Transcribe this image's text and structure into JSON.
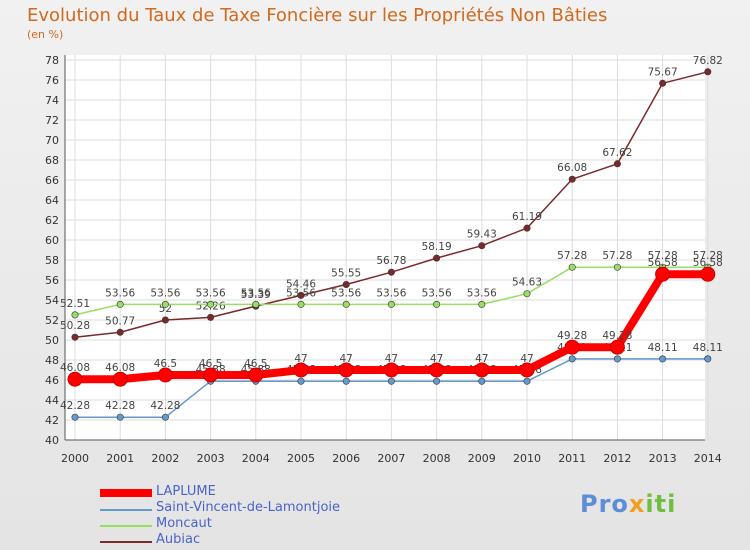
{
  "title": "Evolution du Taux de Taxe Foncière sur les Propriétés Non Bâties",
  "unit_label": "(en %)",
  "logo": {
    "parts": [
      "Pro",
      "x",
      "iti"
    ],
    "colors": [
      "#5b8ed6",
      "#f0a020",
      "#6fbf3f"
    ]
  },
  "chart_data": {
    "type": "line",
    "title": "Evolution du Taux de Taxe Foncière sur les Propriétés Non Bâties",
    "ylabel": "(en %)",
    "xlabel": "",
    "x": [
      "2000",
      "2001",
      "2002",
      "2003",
      "2004",
      "2005",
      "2006",
      "2007",
      "2008",
      "2009",
      "2010",
      "2011",
      "2012",
      "2013",
      "2014"
    ],
    "ylim": [
      40,
      78
    ],
    "yticks": [
      40,
      42,
      44,
      46,
      48,
      50,
      52,
      54,
      56,
      58,
      60,
      62,
      64,
      66,
      68,
      70,
      72,
      74,
      76,
      78
    ],
    "grid": true,
    "legend_position": "bottom-left",
    "series": [
      {
        "name": "LAPLUME",
        "color": "#ff0000",
        "values": [
          46.08,
          46.08,
          46.5,
          46.5,
          46.5,
          47,
          47,
          47,
          47,
          47,
          47,
          49.28,
          49.28,
          56.58,
          56.58
        ]
      },
      {
        "name": "Saint-Vincent-de-Lamontjoie",
        "color": "#6699cc",
        "values": [
          42.28,
          42.28,
          42.28,
          45.88,
          45.88,
          45.88,
          45.88,
          45.88,
          45.88,
          45.88,
          45.88,
          48.11,
          48.11,
          48.11,
          48.11
        ]
      },
      {
        "name": "Moncaut",
        "color": "#99dd66",
        "values": [
          52.51,
          53.56,
          53.56,
          53.56,
          53.56,
          53.56,
          53.56,
          53.56,
          53.56,
          53.56,
          54.63,
          57.28,
          57.28,
          57.28,
          57.28
        ]
      },
      {
        "name": "Aubiac",
        "color": "#7a2a2a",
        "values": [
          50.28,
          50.77,
          52,
          52.26,
          53.39,
          54.46,
          55.55,
          56.78,
          58.19,
          59.43,
          61.19,
          66.08,
          67.62,
          75.67,
          76.82
        ]
      }
    ]
  }
}
